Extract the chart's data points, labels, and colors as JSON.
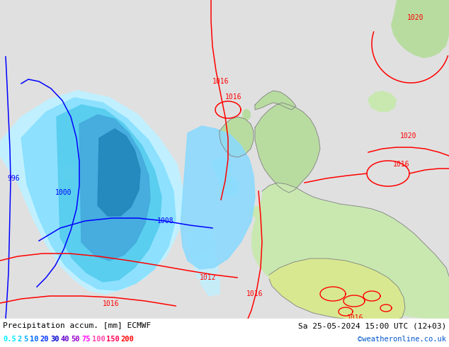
{
  "title_left": "Precipitation accum. [mm] ECMWF",
  "title_right": "Sa 25-05-2024 15:00 UTC (12+03)",
  "credit": "©weatheronline.co.uk",
  "legend_values": [
    "0.5",
    "2",
    "5",
    "10",
    "20",
    "30",
    "40",
    "50",
    "75",
    "100",
    "150",
    "200"
  ],
  "legend_colors": [
    "#00eeff",
    "#00ccff",
    "#00aaff",
    "#0066ff",
    "#0033ff",
    "#0000cc",
    "#6600cc",
    "#9900cc",
    "#ff00ff",
    "#ff44aa",
    "#ff0055",
    "#ff0000"
  ],
  "bg_color": "#e0e0e0",
  "ocean_color": "#e8e8e8",
  "land_green": "#b8dca0",
  "land_green2": "#c8e8b0",
  "land_yellow_green": "#d8e890",
  "precip_cyan_light": "#aaeeff",
  "precip_cyan": "#55ddff",
  "precip_blue_light": "#88ccff",
  "precip_blue": "#44aaee",
  "precip_blue_dark": "#2288cc",
  "isobar_blue": "#0000ff",
  "isobar_red": "#ff0000"
}
